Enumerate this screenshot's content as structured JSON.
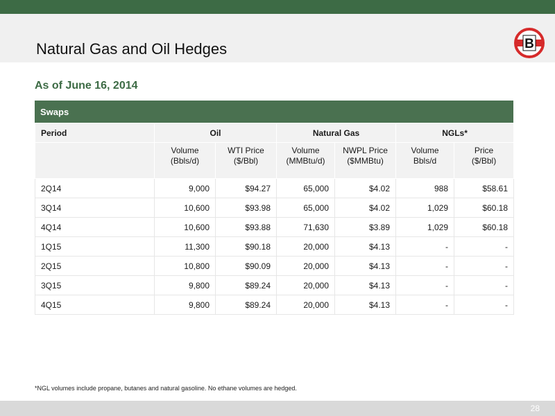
{
  "header": {
    "title": "Natural Gas and Oil Hedges",
    "logo_letter": "B",
    "colors": {
      "brand_green": "#3d6b45",
      "logo_red": "#d62b2b"
    }
  },
  "subtitle": "As of June 16, 2014",
  "table": {
    "caption": "Swaps",
    "group_headers": {
      "period": "Period",
      "oil": "Oil",
      "natural_gas": "Natural Gas",
      "ngls": "NGLs*"
    },
    "sub_headers": [
      {
        "line1": "Volume",
        "line2": "(Bbls/d)"
      },
      {
        "line1": "WTI Price",
        "line2": "($/Bbl)"
      },
      {
        "line1": "Volume",
        "line2": "(MMBtu/d)"
      },
      {
        "line1": "NWPL Price",
        "line2": "($MMBtu)"
      },
      {
        "line1": "Volume",
        "line2": "Bbls/d"
      },
      {
        "line1": "Price",
        "line2": "($/Bbl)"
      }
    ],
    "rows": [
      {
        "period": "2Q14",
        "oil_vol": "9,000",
        "wti": "$94.27",
        "gas_vol": "65,000",
        "nwpl": "$4.02",
        "ngl_vol": "988",
        "ngl_price": "$58.61"
      },
      {
        "period": "3Q14",
        "oil_vol": "10,600",
        "wti": "$93.98",
        "gas_vol": "65,000",
        "nwpl": "$4.02",
        "ngl_vol": "1,029",
        "ngl_price": "$60.18"
      },
      {
        "period": "4Q14",
        "oil_vol": "10,600",
        "wti": "$93.88",
        "gas_vol": "71,630",
        "nwpl": "$3.89",
        "ngl_vol": "1,029",
        "ngl_price": "$60.18"
      },
      {
        "period": "1Q15",
        "oil_vol": "11,300",
        "wti": "$90.18",
        "gas_vol": "20,000",
        "nwpl": "$4.13",
        "ngl_vol": "-",
        "ngl_price": "-"
      },
      {
        "period": "2Q15",
        "oil_vol": "10,800",
        "wti": "$90.09",
        "gas_vol": "20,000",
        "nwpl": "$4.13",
        "ngl_vol": "-",
        "ngl_price": "-"
      },
      {
        "period": "3Q15",
        "oil_vol": "9,800",
        "wti": "$89.24",
        "gas_vol": "20,000",
        "nwpl": "$4.13",
        "ngl_vol": "-",
        "ngl_price": "-"
      },
      {
        "period": "4Q15",
        "oil_vol": "9,800",
        "wti": "$89.24",
        "gas_vol": "20,000",
        "nwpl": "$4.13",
        "ngl_vol": "-",
        "ngl_price": "-"
      }
    ]
  },
  "footnote": "*NGL volumes include propane, butanes and natural gasoline. No ethane volumes are hedged.",
  "page_number": "28"
}
